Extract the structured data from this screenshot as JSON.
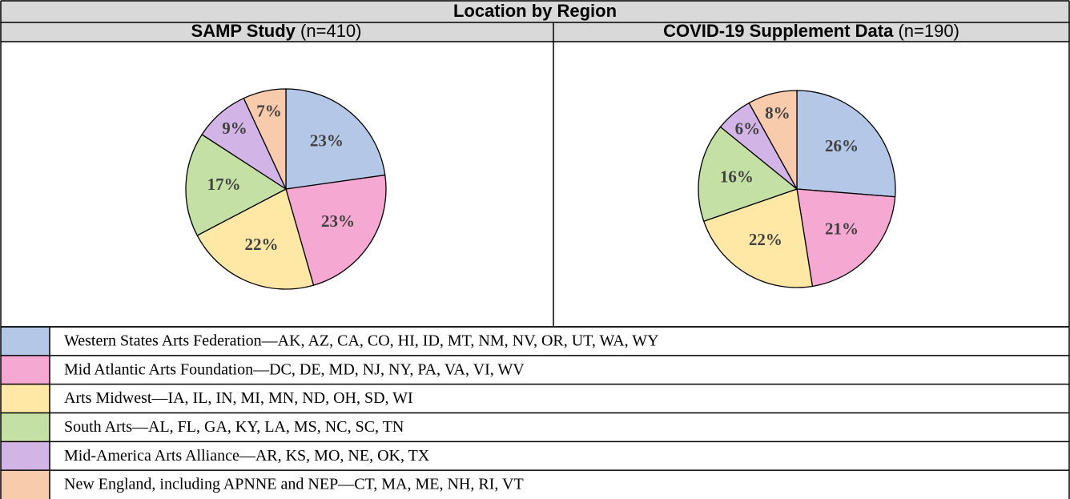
{
  "title": "Location by Region",
  "chart_data": [
    {
      "type": "pie",
      "title": "SAMP Study",
      "subtitle": "(n=410)",
      "values": [
        23,
        23,
        22,
        17,
        9,
        7
      ],
      "value_labels": [
        "23%",
        "23%",
        "22%",
        "17%",
        "9%",
        "7%"
      ]
    },
    {
      "type": "pie",
      "title": "COVID-19 Supplement Data",
      "subtitle": "(n=190)",
      "values": [
        26,
        21,
        22,
        16,
        6,
        8
      ],
      "value_labels": [
        "26%",
        "21%",
        "22%",
        "16%",
        "6%",
        "8%"
      ]
    }
  ],
  "legend": {
    "categories": [
      "Western States Arts Federation—AK, AZ, CA, CO, HI, ID, MT, NM, NV, OR, UT, WA, WY",
      "Mid Atlantic Arts Foundation—DC, DE, MD, NJ, NY, PA, VA, VI, WV",
      "Arts Midwest—IA, IL, IN, MI, MN, ND, OH, SD, WI",
      "South Arts—AL, FL, GA, KY, LA, MS, NC, SC, TN",
      "Mid-America Arts Alliance—AR, KS, MO, NE, OK, TX",
      "New England, including APNNE and NEP—CT, MA, ME, NH, RI, VT"
    ],
    "colors": [
      "#b4c7e7",
      "#f5a8d2",
      "#ffe8a6",
      "#c5e0a4",
      "#d2b4e6",
      "#f8cbad"
    ]
  }
}
